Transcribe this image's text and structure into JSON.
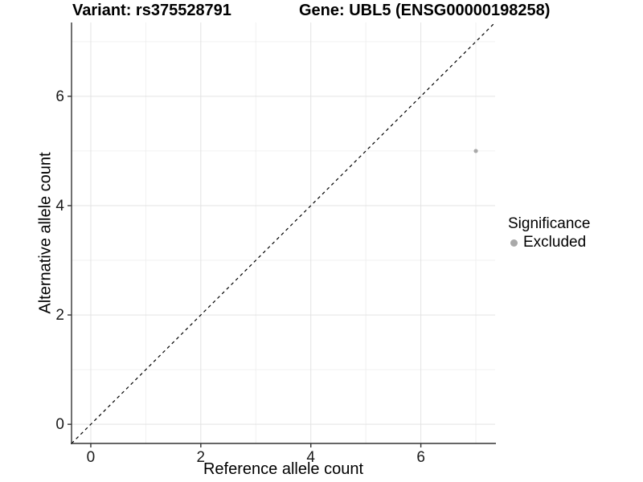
{
  "titles": {
    "variant": "Variant: rs375528791",
    "gene": "Gene: UBL5 (ENSG00000198258)"
  },
  "legend": {
    "title": "Significance",
    "entries": [
      {
        "label": "Excluded",
        "color": "#a9a9a9"
      }
    ]
  },
  "chart_data": {
    "type": "scatter",
    "title": "Variant: rs375528791   Gene: UBL5 (ENSG00000198258)",
    "xlabel": "Reference allele count",
    "ylabel": "Alternative allele count",
    "xlim": [
      -0.35,
      7.35
    ],
    "ylim": [
      -0.35,
      7.35
    ],
    "xticks": [
      0,
      2,
      4,
      6
    ],
    "yticks": [
      0,
      2,
      4,
      6
    ],
    "minor_xticks": [
      1,
      3,
      5,
      7
    ],
    "minor_yticks": [
      1,
      3,
      5,
      7
    ],
    "grid": true,
    "legend_position": "right",
    "series": [
      {
        "name": "Excluded",
        "color": "#a9a9a9",
        "points": [
          {
            "x": 7,
            "y": 5
          }
        ]
      }
    ],
    "reference_line": {
      "type": "identity",
      "slope": 1,
      "intercept": 0,
      "style": "dashed",
      "color": "#000000"
    }
  },
  "colors": {
    "background": "#ffffff",
    "grid_major": "#e3e3e3",
    "grid_minor": "#f0f0f0",
    "axis_line": "#333333",
    "tick_label": "#1a1a1a",
    "point": "#a9a9a9"
  }
}
